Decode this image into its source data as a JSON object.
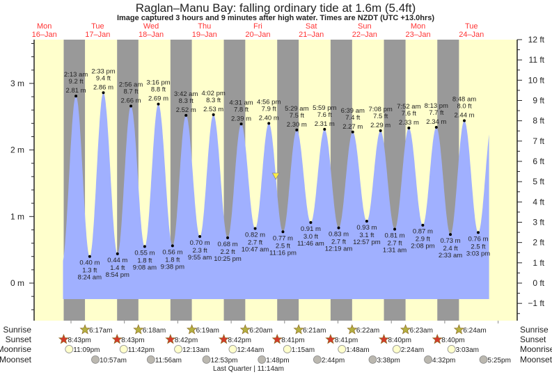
{
  "title": "Raglan–Manu Bay: falling  ordinary tide at 1.6m (5.4ft)",
  "subtitle": "Image captured 3 hours and 9 minutes after high water. Times are NZDT (UTC +13.0hrs)",
  "colors": {
    "day": "#ffffcc",
    "night": "#999999",
    "tide": "#a0b0ff",
    "day_label": "#ff3333",
    "sunrise": "#b5b040",
    "sunset": "#d43a2a",
    "moonrise": "#ffffcc",
    "moonset": "#bbb8b0",
    "current_marker": "#ffee44"
  },
  "days": [
    {
      "dow": "Mon",
      "date": "16–Jan"
    },
    {
      "dow": "Tue",
      "date": "17–Jan"
    },
    {
      "dow": "Wed",
      "date": "18–Jan"
    },
    {
      "dow": "Thu",
      "date": "19–Jan"
    },
    {
      "dow": "Fri",
      "date": "20–Jan"
    },
    {
      "dow": "Sat",
      "date": "21–Jan"
    },
    {
      "dow": "Sun",
      "date": "22–Jan"
    },
    {
      "dow": "Mon",
      "date": "23–Jan"
    },
    {
      "dow": "Tue",
      "date": "24–Jan"
    }
  ],
  "chart_data": {
    "type": "area",
    "left_axis": {
      "unit": "m",
      "ticks": [
        "0 m",
        "1 m",
        "2 m",
        "3 m"
      ],
      "range": [
        -0.56,
        3.66
      ]
    },
    "right_axis": {
      "unit": "ft",
      "ticks": [
        "−1 ft",
        "0 ft",
        "1 ft",
        "2 ft",
        "3 ft",
        "4 ft",
        "5 ft",
        "6 ft",
        "7 ft",
        "8 ft",
        "9 ft",
        "10 ft",
        "11 ft",
        "12 ft"
      ]
    },
    "current": {
      "height_m": 1.6,
      "date": "20-Jan",
      "time": "8:05 pm"
    },
    "extremes": [
      {
        "type": "high",
        "date": "17-Jan",
        "time": "2:13 am",
        "ft": "9.2 ft",
        "m": "2.81 m"
      },
      {
        "type": "low",
        "date": "17-Jan",
        "time": "8:24 am",
        "ft": "1.3 ft",
        "m": "0.40 m"
      },
      {
        "type": "high",
        "date": "17-Jan",
        "time": "2:33 pm",
        "ft": "9.4 ft",
        "m": "2.86 m"
      },
      {
        "type": "low",
        "date": "17-Jan",
        "time": "8:54 pm",
        "ft": "1.4 ft",
        "m": "0.44 m"
      },
      {
        "type": "high",
        "date": "18-Jan",
        "time": "2:56 am",
        "ft": "8.7 ft",
        "m": "2.66 m"
      },
      {
        "type": "low",
        "date": "18-Jan",
        "time": "9:08 am",
        "ft": "1.8 ft",
        "m": "0.55 m"
      },
      {
        "type": "high",
        "date": "18-Jan",
        "time": "3:16 pm",
        "ft": "8.8 ft",
        "m": "2.69 m"
      },
      {
        "type": "low",
        "date": "18-Jan",
        "time": "9:38 pm",
        "ft": "1.8 ft",
        "m": "0.56 m"
      },
      {
        "type": "high",
        "date": "19-Jan",
        "time": "3:42 am",
        "ft": "8.3 ft",
        "m": "2.52 m"
      },
      {
        "type": "low",
        "date": "19-Jan",
        "time": "9:55 am",
        "ft": "2.3 ft",
        "m": "0.70 m"
      },
      {
        "type": "high",
        "date": "19-Jan",
        "time": "4:02 pm",
        "ft": "8.3 ft",
        "m": "2.53 m"
      },
      {
        "type": "low",
        "date": "19-Jan",
        "time": "10:25 pm",
        "ft": "2.2 ft",
        "m": "0.68 m"
      },
      {
        "type": "high",
        "date": "20-Jan",
        "time": "4:31 am",
        "ft": "7.8 ft",
        "m": "2.39 m"
      },
      {
        "type": "low",
        "date": "20-Jan",
        "time": "10:47 am",
        "ft": "2.7 ft",
        "m": "0.82 m"
      },
      {
        "type": "high",
        "date": "20-Jan",
        "time": "4:56 pm",
        "ft": "7.9 ft",
        "m": "2.40 m"
      },
      {
        "type": "low",
        "date": "20-Jan",
        "time": "11:16 pm",
        "ft": "2.5 ft",
        "m": "0.77 m"
      },
      {
        "type": "high",
        "date": "21-Jan",
        "time": "5:29 am",
        "ft": "7.5 ft",
        "m": "2.30 m"
      },
      {
        "type": "low",
        "date": "21-Jan",
        "time": "11:46 am",
        "ft": "3.0 ft",
        "m": "0.91 m"
      },
      {
        "type": "high",
        "date": "21-Jan",
        "time": "5:59 pm",
        "ft": "7.6 ft",
        "m": "2.31 m"
      },
      {
        "type": "low",
        "date": "22-Jan",
        "time": "12:19 am",
        "ft": "2.7 ft",
        "m": "0.83 m"
      },
      {
        "type": "high",
        "date": "22-Jan",
        "time": "6:39 am",
        "ft": "7.4 ft",
        "m": "2.27 m"
      },
      {
        "type": "low",
        "date": "22-Jan",
        "time": "12:57 pm",
        "ft": "3.1 ft",
        "m": "0.93 m"
      },
      {
        "type": "high",
        "date": "22-Jan",
        "time": "7:08 pm",
        "ft": "7.5 ft",
        "m": "2.29 m"
      },
      {
        "type": "low",
        "date": "23-Jan",
        "time": "1:31 am",
        "ft": "2.7 ft",
        "m": "0.81 m"
      },
      {
        "type": "high",
        "date": "23-Jan",
        "time": "7:52 am",
        "ft": "7.6 ft",
        "m": "2.33 m"
      },
      {
        "type": "low",
        "date": "23-Jan",
        "time": "2:08 pm",
        "ft": "2.9 ft",
        "m": "0.87 m"
      },
      {
        "type": "high",
        "date": "23-Jan",
        "time": "8:13 pm",
        "ft": "7.7 ft",
        "m": "2.34 m"
      },
      {
        "type": "low",
        "date": "24-Jan",
        "time": "2:33 am",
        "ft": "2.4 ft",
        "m": "0.73 m"
      },
      {
        "type": "high",
        "date": "24-Jan",
        "time": "8:48 am",
        "ft": "8.0 ft",
        "m": "2.44 m"
      },
      {
        "type": "low",
        "date": "24-Jan",
        "time": "3:03 pm",
        "ft": "2.5 ft",
        "m": "0.76 m"
      }
    ]
  },
  "rows": {
    "sunrise": "Sunrise",
    "sunset": "Sunset",
    "moonrise": "Moonrise",
    "moonset": "Moonset"
  },
  "sunrise": [
    {
      "date": "17-Jan",
      "time": "6:17am"
    },
    {
      "date": "18-Jan",
      "time": "6:18am"
    },
    {
      "date": "19-Jan",
      "time": "6:19am"
    },
    {
      "date": "20-Jan",
      "time": "6:20am"
    },
    {
      "date": "21-Jan",
      "time": "6:21am"
    },
    {
      "date": "22-Jan",
      "time": "6:22am"
    },
    {
      "date": "23-Jan",
      "time": "6:23am"
    },
    {
      "date": "24-Jan",
      "time": "6:24am"
    }
  ],
  "sunset": [
    {
      "date": "16-Jan",
      "time": "8:43pm"
    },
    {
      "date": "17-Jan",
      "time": "8:43pm"
    },
    {
      "date": "18-Jan",
      "time": "8:42pm"
    },
    {
      "date": "19-Jan",
      "time": "8:42pm"
    },
    {
      "date": "20-Jan",
      "time": "8:41pm"
    },
    {
      "date": "21-Jan",
      "time": "8:41pm"
    },
    {
      "date": "22-Jan",
      "time": "8:40pm"
    },
    {
      "date": "23-Jan",
      "time": "8:40pm"
    }
  ],
  "moonrise": [
    {
      "date": "16-Jan",
      "time": "11:09pm"
    },
    {
      "date": "17-Jan",
      "time": "11:42pm"
    },
    {
      "date": "19-Jan",
      "time": "12:13am"
    },
    {
      "date": "20-Jan",
      "time": "12:44am"
    },
    {
      "date": "21-Jan",
      "time": "1:15am"
    },
    {
      "date": "22-Jan",
      "time": "1:48am"
    },
    {
      "date": "23-Jan",
      "time": "2:24am"
    },
    {
      "date": "24-Jan",
      "time": "3:03am"
    }
  ],
  "moonset": [
    {
      "date": "17-Jan",
      "time": "10:57am"
    },
    {
      "date": "18-Jan",
      "time": "11:56am"
    },
    {
      "date": "19-Jan",
      "time": "12:53pm"
    },
    {
      "date": "20-Jan",
      "time": "1:48pm"
    },
    {
      "date": "21-Jan",
      "time": "2:44pm"
    },
    {
      "date": "22-Jan",
      "time": "3:38pm"
    },
    {
      "date": "23-Jan",
      "time": "4:32pm"
    },
    {
      "date": "24-Jan",
      "time": "5:25pm"
    }
  ],
  "moon_phase": "Last Quarter | 11:14am"
}
